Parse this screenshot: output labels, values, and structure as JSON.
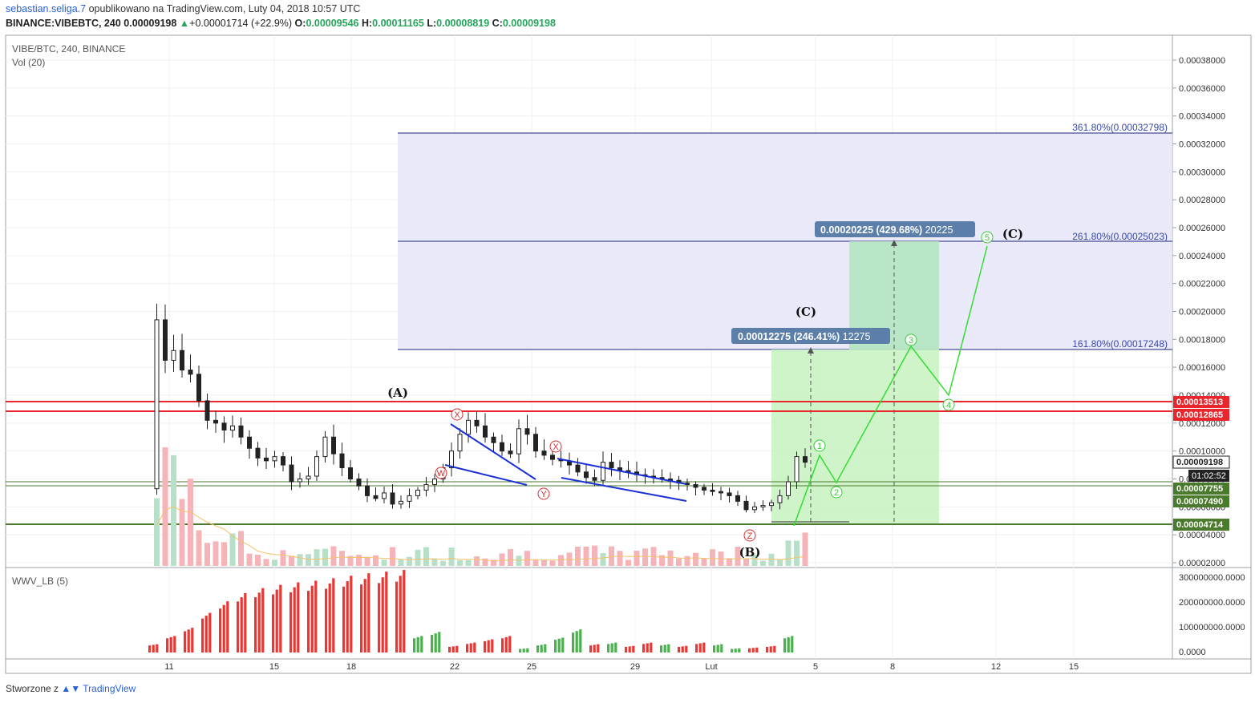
{
  "header": {
    "author": "sebastian.seliga.7",
    "published_text": "opublikowano na TradingView.com, Luty 04, 2018 10:57 UTC",
    "symbol_line": "BINANCE:VIBEBTC, 240",
    "last": "0.00009198",
    "change": "+0.00001714 (+22.9%)",
    "o_label": "O:",
    "o": "0.00009546",
    "h_label": "H:",
    "h": "0.00011165",
    "l_label": "L:",
    "l": "0.00008819",
    "c_label": "C:",
    "c": "0.00009198"
  },
  "legend": {
    "symbol": "VIBE/BTC, 240, BINANCE",
    "vol": "Vol (20)",
    "indicator": "WWV_LB (5)"
  },
  "footer": {
    "created": "Stworzone z",
    "brand": "TradingView"
  },
  "colors": {
    "up": "#26a65b",
    "down": "#222222",
    "red_line": "#e8262b",
    "green_line": "#4a7a2c",
    "fib_fill": "#e6e6fa",
    "fib_line": "#1a237e",
    "target_fill": "#c8f2c0",
    "wave": "#33dd33",
    "vol_up": "#b8e0c8",
    "vol_down": "#f4b4b8",
    "osc_up": "#4caf50",
    "osc_down": "#e53935"
  },
  "chart_data": {
    "type": "candlestick",
    "x_ticks": [
      "11",
      "15",
      "18",
      "22",
      "25",
      "29",
      "Lut",
      "5",
      "8",
      "12",
      "15"
    ],
    "y_ticks": [
      "0.00002000",
      "0.00004000",
      "0.00006000",
      "0.00008000",
      "0.00010000",
      "0.00012000",
      "0.00014000",
      "0.00016000",
      "0.00018000",
      "0.00020000",
      "0.00022000",
      "0.00024000",
      "0.00026000",
      "0.00028000",
      "0.00030000",
      "0.00032000",
      "0.00034000",
      "0.00036000",
      "0.00038000"
    ],
    "ylim": [
      1.25e-05,
      0.0004
    ],
    "price_path": [
      [
        0,
        7.3e-05
      ],
      [
        1,
        0.000194
      ],
      [
        2,
        0.000165
      ],
      [
        3,
        0.000172
      ],
      [
        4,
        0.000158
      ],
      [
        5,
        0.000155
      ],
      [
        6,
        0.000136
      ],
      [
        7,
        0.000122
      ],
      [
        8,
        0.00012
      ],
      [
        9,
        0.000115
      ],
      [
        10,
        0.000118
      ],
      [
        11,
        0.00011
      ],
      [
        12,
        0.000102
      ],
      [
        13,
        9.5e-05
      ],
      [
        14,
        9.3e-05
      ],
      [
        15,
        9.6e-05
      ],
      [
        16,
        9e-05
      ],
      [
        17,
        7.8e-05
      ],
      [
        18,
        8e-05
      ],
      [
        19,
        8.2e-05
      ],
      [
        20,
        9.6e-05
      ],
      [
        21,
        0.00011
      ],
      [
        22,
        9.8e-05
      ],
      [
        23,
        8.8e-05
      ],
      [
        24,
        8e-05
      ],
      [
        25,
        7.5e-05
      ],
      [
        26,
        6.8e-05
      ],
      [
        27,
        6.6e-05
      ],
      [
        28,
        7e-05
      ],
      [
        29,
        6.2e-05
      ],
      [
        30,
        6.4e-05
      ],
      [
        31,
        6.8e-05
      ],
      [
        32,
        7.2e-05
      ],
      [
        33,
        7.6e-05
      ],
      [
        34,
        8e-05
      ],
      [
        35,
        8.8e-05
      ],
      [
        36,
        0.0001
      ],
      [
        37,
        0.000112
      ],
      [
        38,
        0.000122
      ],
      [
        39,
        0.000118
      ],
      [
        40,
        0.00011
      ],
      [
        41,
        0.000106
      ],
      [
        42,
        0.0001
      ],
      [
        43,
        9.8e-05
      ],
      [
        44,
        0.000116
      ],
      [
        45,
        0.000112
      ],
      [
        46,
        0.0001
      ],
      [
        47,
        9.7e-05
      ],
      [
        48,
        9.4e-05
      ],
      [
        49,
        9.3e-05
      ],
      [
        50,
        9e-05
      ],
      [
        51,
        8.5e-05
      ],
      [
        52,
        8.1e-05
      ],
      [
        53,
        7.9e-05
      ],
      [
        54,
        9.2e-05
      ],
      [
        55,
        8.8e-05
      ],
      [
        56,
        8.6e-05
      ],
      [
        57,
        8.5e-05
      ],
      [
        58,
        8.3e-05
      ],
      [
        59,
        8.2e-05
      ],
      [
        60,
        8.1e-05
      ],
      [
        61,
        8e-05
      ],
      [
        62,
        7.9e-05
      ],
      [
        63,
        7.7e-05
      ],
      [
        64,
        7.6e-05
      ],
      [
        65,
        7.4e-05
      ],
      [
        66,
        7.2e-05
      ],
      [
        67,
        7.1e-05
      ],
      [
        68,
        7e-05
      ],
      [
        69,
        6.8e-05
      ],
      [
        70,
        6.4e-05
      ],
      [
        71,
        5.8e-05
      ],
      [
        72,
        6e-05
      ],
      [
        73,
        6.1e-05
      ],
      [
        74,
        6.3e-05
      ],
      [
        75,
        6.8e-05
      ],
      [
        76,
        7.8e-05
      ],
      [
        77,
        9.6e-05
      ],
      [
        78,
        9.2e-05
      ]
    ],
    "wwv_bars": [
      {
        "x": 0,
        "v": 0.1,
        "up": false
      },
      {
        "x": 1,
        "v": 0.2,
        "up": false
      },
      {
        "x": 2,
        "v": 0.3,
        "up": false
      },
      {
        "x": 3,
        "v": 0.48,
        "up": false
      },
      {
        "x": 4,
        "v": 0.62,
        "up": false
      },
      {
        "x": 5,
        "v": 0.72,
        "up": false
      },
      {
        "x": 6,
        "v": 0.78,
        "up": false
      },
      {
        "x": 7,
        "v": 0.82,
        "up": false
      },
      {
        "x": 8,
        "v": 0.85,
        "up": false
      },
      {
        "x": 9,
        "v": 0.87,
        "up": false
      },
      {
        "x": 10,
        "v": 0.9,
        "up": false
      },
      {
        "x": 11,
        "v": 0.93,
        "up": false
      },
      {
        "x": 12,
        "v": 0.96,
        "up": false
      },
      {
        "x": 13,
        "v": 0.98,
        "up": false
      },
      {
        "x": 14,
        "v": 1.0,
        "up": false
      },
      {
        "x": 15,
        "v": 0.2,
        "up": true
      },
      {
        "x": 16,
        "v": 0.25,
        "up": true
      },
      {
        "x": 17,
        "v": 0.08,
        "up": false
      },
      {
        "x": 18,
        "v": 0.12,
        "up": false
      },
      {
        "x": 19,
        "v": 0.16,
        "up": false
      },
      {
        "x": 20,
        "v": 0.2,
        "up": false
      },
      {
        "x": 21,
        "v": 0.05,
        "up": true
      },
      {
        "x": 22,
        "v": 0.1,
        "up": true
      },
      {
        "x": 23,
        "v": 0.18,
        "up": true
      },
      {
        "x": 24,
        "v": 0.28,
        "up": true
      },
      {
        "x": 25,
        "v": 0.1,
        "up": false
      },
      {
        "x": 26,
        "v": 0.12,
        "up": true
      },
      {
        "x": 27,
        "v": 0.08,
        "up": false
      },
      {
        "x": 28,
        "v": 0.12,
        "up": false
      },
      {
        "x": 29,
        "v": 0.1,
        "up": true
      },
      {
        "x": 30,
        "v": 0.08,
        "up": false
      },
      {
        "x": 31,
        "v": 0.12,
        "up": false
      },
      {
        "x": 32,
        "v": 0.1,
        "up": true
      },
      {
        "x": 33,
        "v": 0.05,
        "up": true
      },
      {
        "x": 34,
        "v": 0.06,
        "up": false
      },
      {
        "x": 35,
        "v": 0.08,
        "up": false
      },
      {
        "x": 36,
        "v": 0.2,
        "up": true
      }
    ]
  }
}
